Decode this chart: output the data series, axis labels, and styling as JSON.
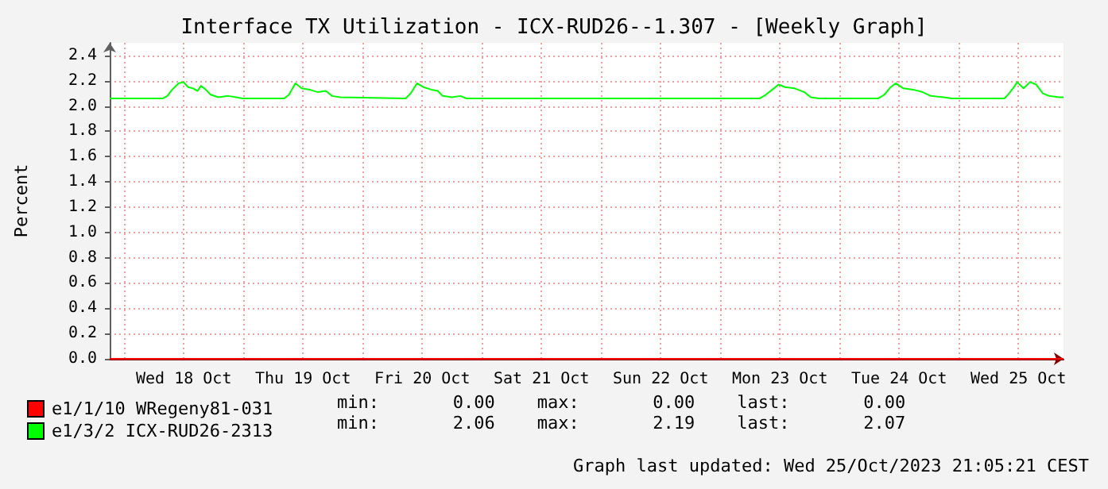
{
  "chart_data": {
    "type": "line",
    "title": "Interface TX Utilization - ICX-RUD26--1.307 - [Weekly Graph]",
    "ylabel": "Percent",
    "xlim": [
      "2023-10-17T21:05",
      "2023-10-25T21:05"
    ],
    "xticks": [
      {
        "value": "2023-10-18T00:00",
        "label": null
      },
      {
        "value": "2023-10-18T12:00",
        "label": "Wed 18 Oct"
      },
      {
        "value": "2023-10-19T00:00",
        "label": null
      },
      {
        "value": "2023-10-19T12:00",
        "label": "Thu 19 Oct"
      },
      {
        "value": "2023-10-20T00:00",
        "label": null
      },
      {
        "value": "2023-10-20T12:00",
        "label": "Fri 20 Oct"
      },
      {
        "value": "2023-10-21T00:00",
        "label": null
      },
      {
        "value": "2023-10-21T12:00",
        "label": "Sat 21 Oct"
      },
      {
        "value": "2023-10-22T00:00",
        "label": null
      },
      {
        "value": "2023-10-22T12:00",
        "label": "Sun 22 Oct"
      },
      {
        "value": "2023-10-23T00:00",
        "label": null
      },
      {
        "value": "2023-10-23T12:00",
        "label": "Mon 23 Oct"
      },
      {
        "value": "2023-10-24T00:00",
        "label": null
      },
      {
        "value": "2023-10-24T12:00",
        "label": "Tue 24 Oct"
      },
      {
        "value": "2023-10-25T00:00",
        "label": null
      },
      {
        "value": "2023-10-25T12:00",
        "label": "Wed 25 Oct"
      }
    ],
    "ylim": [
      0,
      2.5
    ],
    "yticks": [
      {
        "value": 0,
        "label": "0.0"
      },
      0.2,
      0.4,
      0.6,
      0.8,
      {
        "value": 1,
        "label": "1.0"
      },
      1.2,
      1.4,
      1.6,
      1.8,
      {
        "value": 2,
        "label": "2.0"
      },
      2.2,
      2.4
    ],
    "grid": true,
    "legend": "bottom left",
    "marker": "none",
    "series": [
      {
        "name": "e1/1/10 WRegeny81-031",
        "color": "#ff0000",
        "x": [
          "2023-10-17T21:05",
          "2023-10-25T21:05"
        ],
        "values": [
          0,
          0
        ]
      },
      {
        "name": "e1/3/2 ICX-RUD26-2313",
        "color": "#00ff00",
        "x": [
          "2023-10-17T21:05",
          "2023-10-18T07:44",
          "2023-10-18T08:42",
          "2023-10-18T09:40",
          "2023-10-18T10:57",
          "2023-10-18T11:55",
          "2023-10-18T12:53",
          "2023-10-18T13:50",
          "2023-10-18T14:48",
          "2023-10-18T15:27",
          "2023-10-18T16:26",
          "2023-10-18T17:24",
          "2023-10-18T19:00",
          "2023-10-18T20:56",
          "2023-10-18T22:33",
          "2023-10-18T23:50",
          "2023-10-19T08:13",
          "2023-10-19T09:11",
          "2023-10-19T10:28",
          "2023-10-19T11:45",
          "2023-10-19T13:21",
          "2023-10-19T14:58",
          "2023-10-19T16:35",
          "2023-10-19T17:52",
          "2023-10-19T19:29",
          "2023-10-20T08:41",
          "2023-10-20T09:40",
          "2023-10-20T10:57",
          "2023-10-20T12:14",
          "2023-10-20T13:50",
          "2023-10-20T15:08",
          "2023-10-20T16:06",
          "2023-10-20T18:03",
          "2023-10-20T19:39",
          "2023-10-20T20:56",
          "2023-10-23T07:54",
          "2023-10-23T09:11",
          "2023-10-23T10:28",
          "2023-10-23T11:45",
          "2023-10-23T13:03",
          "2023-10-23T14:58",
          "2023-10-23T16:55",
          "2023-10-23T18:12",
          "2023-10-23T19:49",
          "2023-10-24T07:44",
          "2023-10-24T09:01",
          "2023-10-24T10:19",
          "2023-10-24T11:17",
          "2023-10-24T12:53",
          "2023-10-24T14:48",
          "2023-10-24T16:45",
          "2023-10-24T18:21",
          "2023-10-24T20:56",
          "2023-10-24T22:33",
          "2023-10-25T09:11",
          "2023-10-25T10:09",
          "2023-10-25T11:07",
          "2023-10-25T11:45",
          "2023-10-25T13:03",
          "2023-10-25T14:20",
          "2023-10-25T15:37",
          "2023-10-25T16:55",
          "2023-10-25T18:12",
          "2023-10-25T20:08",
          "2023-10-25T21:05"
        ],
        "values": [
          2.06,
          2.06,
          2.08,
          2.13,
          2.18,
          2.19,
          2.15,
          2.14,
          2.12,
          2.16,
          2.13,
          2.09,
          2.07,
          2.08,
          2.07,
          2.06,
          2.06,
          2.09,
          2.18,
          2.14,
          2.13,
          2.11,
          2.12,
          2.08,
          2.07,
          2.06,
          2.1,
          2.18,
          2.15,
          2.13,
          2.12,
          2.08,
          2.07,
          2.08,
          2.06,
          2.06,
          2.09,
          2.13,
          2.17,
          2.15,
          2.14,
          2.11,
          2.07,
          2.06,
          2.06,
          2.09,
          2.15,
          2.18,
          2.14,
          2.13,
          2.11,
          2.08,
          2.07,
          2.06,
          2.06,
          2.1,
          2.15,
          2.19,
          2.14,
          2.19,
          2.17,
          2.1,
          2.08,
          2.07,
          2.07
        ]
      }
    ],
    "annotations": [
      "min:       0.00    max:       0.00    last:       0.00",
      "min:       2.06    max:       2.19    last:       2.07",
      "Graph last updated: Wed 25/Oct/2023 21:05:21 CEST"
    ]
  }
}
